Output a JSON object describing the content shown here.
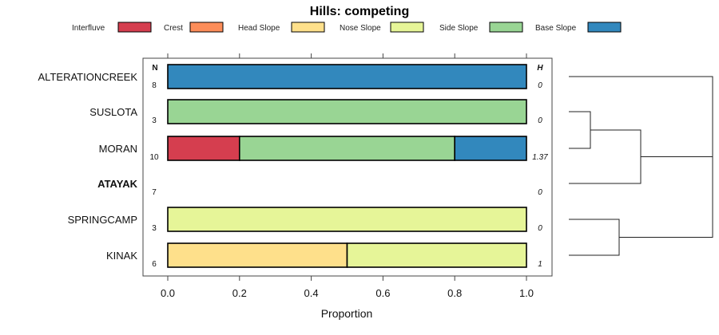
{
  "chart_data": {
    "type": "bar",
    "orientation": "horizontal",
    "stacked": true,
    "title": "Hills: competing",
    "xlabel": "Proportion",
    "xlim": [
      0,
      1
    ],
    "xticks": [
      "0.0",
      "0.2",
      "0.4",
      "0.6",
      "0.8",
      "1.0"
    ],
    "legend": {
      "placement": "top",
      "entries": [
        {
          "name": "Interfluve",
          "color": "#d53e4f"
        },
        {
          "name": "Crest",
          "color": "#fc8d59"
        },
        {
          "name": "Head Slope",
          "color": "#fee08b"
        },
        {
          "name": "Nose Slope",
          "color": "#e6f598"
        },
        {
          "name": "Side Slope",
          "color": "#99d594"
        },
        {
          "name": "Base Slope",
          "color": "#3288bd"
        }
      ]
    },
    "n_header": "N",
    "h_header": "H",
    "rows": [
      {
        "label": "ALTERATIONCREEK",
        "bold": false,
        "n": "8",
        "h": "0",
        "segments": [
          {
            "component": "Base Slope",
            "value": 1.0
          }
        ]
      },
      {
        "label": "SUSLOTA",
        "bold": false,
        "n": "3",
        "h": "0",
        "segments": [
          {
            "component": "Side Slope",
            "value": 1.0
          }
        ]
      },
      {
        "label": "MORAN",
        "bold": false,
        "n": "10",
        "h": "1.37",
        "segments": [
          {
            "component": "Interfluve",
            "value": 0.2
          },
          {
            "component": "Side Slope",
            "value": 0.6
          },
          {
            "component": "Base Slope",
            "value": 0.2
          }
        ]
      },
      {
        "label": "ATAYAK",
        "bold": true,
        "n": "7",
        "h": "0",
        "segments": []
      },
      {
        "label": "SPRINGCAMP",
        "bold": false,
        "n": "3",
        "h": "0",
        "segments": [
          {
            "component": "Nose Slope",
            "value": 1.0
          }
        ]
      },
      {
        "label": "KINAK",
        "bold": false,
        "n": "6",
        "h": "1",
        "segments": [
          {
            "component": "Head Slope",
            "value": 0.5
          },
          {
            "component": "Nose Slope",
            "value": 0.5
          }
        ]
      }
    ],
    "dendrogram": {
      "merges": [
        {
          "left": "SUSLOTA",
          "right": "MORAN",
          "height": 0.15
        },
        {
          "left": "cluster-1",
          "right": "ATAYAK",
          "height": 0.5
        },
        {
          "left": "SPRINGCAMP",
          "right": "KINAK",
          "height": 0.35
        },
        {
          "left": "ALTERATIONCREEK",
          "right": "cluster-2",
          "height": 1.0
        },
        {
          "left": "cluster-4",
          "right": "cluster-3",
          "height": 1.0
        }
      ]
    }
  }
}
